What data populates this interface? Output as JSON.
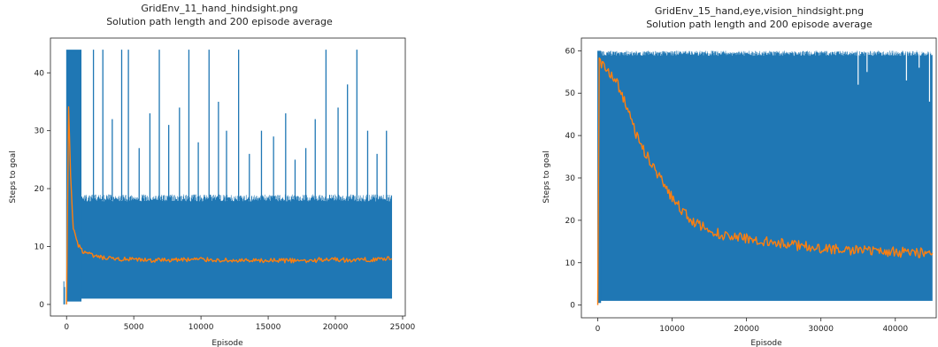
{
  "chart_data": [
    {
      "type": "line",
      "title": "GridEnv_11_hand_hindsight.png",
      "subtitle": "Solution path length and 200 episode average",
      "xlabel": "Episode",
      "ylabel": "Steps to goal",
      "xlim": [
        -1200,
        25200
      ],
      "ylim": [
        -2,
        46
      ],
      "xticks": [
        0,
        5000,
        10000,
        15000,
        20000,
        25000
      ],
      "yticks": [
        0,
        10,
        20,
        30,
        40
      ],
      "grid": false,
      "legend": "none",
      "series": [
        {
          "kind": "raw",
          "color": "#1f77b4",
          "episodes": 24200,
          "band_min": 1,
          "band_max": 19,
          "max_value": 44,
          "spikes": [
            {
              "x": 2000,
              "y": 44
            },
            {
              "x": 2700,
              "y": 44
            },
            {
              "x": 3400,
              "y": 32
            },
            {
              "x": 4100,
              "y": 44
            },
            {
              "x": 4600,
              "y": 44
            },
            {
              "x": 5400,
              "y": 27
            },
            {
              "x": 6200,
              "y": 33
            },
            {
              "x": 6900,
              "y": 44
            },
            {
              "x": 7600,
              "y": 31
            },
            {
              "x": 8400,
              "y": 34
            },
            {
              "x": 9100,
              "y": 44
            },
            {
              "x": 9800,
              "y": 28
            },
            {
              "x": 10600,
              "y": 44
            },
            {
              "x": 11300,
              "y": 35
            },
            {
              "x": 11900,
              "y": 30
            },
            {
              "x": 12800,
              "y": 44
            },
            {
              "x": 13600,
              "y": 26
            },
            {
              "x": 14500,
              "y": 30
            },
            {
              "x": 15400,
              "y": 29
            },
            {
              "x": 16300,
              "y": 33
            },
            {
              "x": 17000,
              "y": 25
            },
            {
              "x": 17800,
              "y": 27
            },
            {
              "x": 18500,
              "y": 32
            },
            {
              "x": 19300,
              "y": 44
            },
            {
              "x": 20200,
              "y": 34
            },
            {
              "x": 20900,
              "y": 38
            },
            {
              "x": 21600,
              "y": 44
            },
            {
              "x": 22400,
              "y": 30
            },
            {
              "x": 23100,
              "y": 26
            },
            {
              "x": 23800,
              "y": 30
            }
          ]
        },
        {
          "kind": "average",
          "color": "#ff7f0e",
          "x": [
            0,
            150,
            300,
            500,
            800,
            1200,
            2000,
            3000,
            4000,
            6000,
            8000,
            10000,
            12000,
            14000,
            16000,
            18000,
            19500,
            21000,
            23000,
            24200
          ],
          "y": [
            0,
            34,
            22,
            13,
            10.5,
            9.2,
            8.3,
            7.9,
            7.8,
            7.6,
            7.7,
            7.8,
            7.6,
            7.5,
            7.6,
            7.5,
            7.9,
            7.6,
            7.8,
            7.9
          ]
        }
      ]
    },
    {
      "type": "line",
      "title": "GridEnv_15_hand,eye,vision_hindsight.png",
      "subtitle": "Solution path length and 200 episode average",
      "xlabel": "Episode",
      "ylabel": "Steps to goal",
      "xlim": [
        -2200,
        45500
      ],
      "ylim": [
        -3,
        63
      ],
      "xticks": [
        0,
        10000,
        20000,
        30000,
        40000
      ],
      "yticks": [
        0,
        10,
        20,
        30,
        40,
        50,
        60
      ],
      "grid": false,
      "legend": "none",
      "series": [
        {
          "kind": "raw",
          "color": "#1f77b4",
          "episodes": 45000,
          "band_min": 1,
          "band_max": 60,
          "max_value": 60,
          "gaps": [
            {
              "x": 35000,
              "y": 52
            },
            {
              "x": 36200,
              "y": 55
            },
            {
              "x": 41500,
              "y": 53
            },
            {
              "x": 43200,
              "y": 56
            },
            {
              "x": 44600,
              "y": 48
            }
          ]
        },
        {
          "kind": "average",
          "color": "#ff7f0e",
          "x": [
            0,
            200,
            500,
            1000,
            2000,
            3000,
            4000,
            5000,
            6000,
            7000,
            8000,
            9000,
            10000,
            11000,
            12000,
            13000,
            14000,
            15000,
            17000,
            19000,
            21000,
            23000,
            25000,
            27000,
            30000,
            33000,
            36000,
            39000,
            42000,
            45000
          ],
          "y": [
            0,
            58,
            57,
            56,
            54,
            51,
            46,
            41,
            37,
            34,
            31,
            28,
            25.5,
            23,
            21,
            19.5,
            18.5,
            17.5,
            16.5,
            16,
            15.5,
            15,
            14.5,
            14,
            13.5,
            13,
            12.8,
            12.6,
            12.4,
            12.3
          ]
        }
      ]
    }
  ]
}
